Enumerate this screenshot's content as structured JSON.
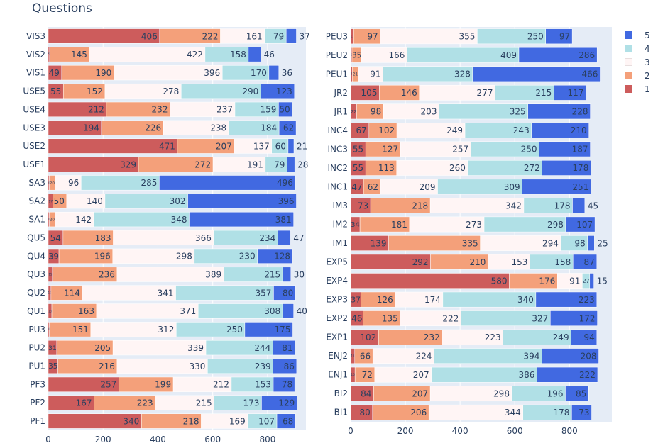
{
  "title": "Questions",
  "colors": {
    "1": "#cd5c5c",
    "2": "#f4a07a",
    "3": "#fff5f5",
    "4": "#b0e0e6",
    "5": "#4169e1",
    "plot_bg": "#e5ecf6"
  },
  "chart_data": [
    {
      "type": "bar",
      "orientation": "horizontal",
      "stacked": true,
      "xlim": [
        0,
        940
      ],
      "x_ticks": [
        0,
        200,
        400,
        600,
        800
      ],
      "categories": [
        "VIS3",
        "VIS2",
        "VIS1",
        "USE5",
        "USE4",
        "USE3",
        "USE2",
        "USE1",
        "SA3",
        "SA2",
        "SA1",
        "QU5",
        "QU4",
        "QU3",
        "QU2",
        "QU1",
        "PU3",
        "PU2",
        "PU1",
        "PF3",
        "PF2",
        "PF1"
      ],
      "series": [
        {
          "name": "1",
          "values": [
            406,
            5,
            49,
            55,
            212,
            194,
            471,
            329,
            4,
            17,
            4,
            54,
            39,
            15,
            10,
            13,
            4,
            31,
            35,
            257,
            167,
            340
          ]
        },
        {
          "name": "2",
          "values": [
            222,
            145,
            190,
            152,
            232,
            226,
            207,
            272,
            20,
            50,
            20,
            183,
            196,
            236,
            114,
            163,
            151,
            205,
            216,
            199,
            223,
            218
          ]
        },
        {
          "name": "3",
          "values": [
            161,
            422,
            396,
            278,
            237,
            238,
            137,
            191,
            96,
            140,
            142,
            366,
            298,
            389,
            341,
            371,
            312,
            339,
            330,
            212,
            215,
            169
          ]
        },
        {
          "name": "4",
          "values": [
            79,
            158,
            170,
            290,
            159,
            184,
            60,
            79,
            285,
            302,
            348,
            234,
            230,
            215,
            357,
            308,
            250,
            244,
            239,
            153,
            173,
            107
          ]
        },
        {
          "name": "5",
          "values": [
            37,
            46,
            36,
            123,
            50,
            62,
            21,
            28,
            496,
            396,
            381,
            47,
            128,
            30,
            80,
            40,
            175,
            81,
            86,
            78,
            129,
            68
          ]
        }
      ]
    },
    {
      "type": "bar",
      "orientation": "horizontal",
      "stacked": true,
      "xlim": [
        0,
        955
      ],
      "x_ticks": [
        0,
        200,
        400,
        600,
        800
      ],
      "categories": [
        "PEU3",
        "PEU2",
        "PEU1",
        "JR2",
        "JR1",
        "INC4",
        "INC3",
        "INC2",
        "INC1",
        "IM3",
        "IM2",
        "IM1",
        "EXP5",
        "EXP4",
        "EXP3",
        "EXP2",
        "EXP1",
        "ENJ2",
        "ENJ1",
        "BI2",
        "BI1"
      ],
      "series": [
        {
          "name": "1",
          "values": [
            11,
            5,
            6,
            105,
            22,
            67,
            55,
            55,
            47,
            73,
            34,
            139,
            292,
            580,
            37,
            46,
            102,
            15,
            16,
            84,
            80
          ]
        },
        {
          "name": "2",
          "values": [
            97,
            35,
            21,
            146,
            98,
            102,
            127,
            113,
            62,
            218,
            181,
            335,
            210,
            176,
            126,
            135,
            232,
            66,
            72,
            207,
            206
          ]
        },
        {
          "name": "3",
          "values": [
            355,
            166,
            91,
            277,
            203,
            249,
            257,
            260,
            209,
            342,
            273,
            294,
            153,
            91,
            174,
            222,
            223,
            224,
            207,
            298,
            344
          ]
        },
        {
          "name": "4",
          "values": [
            250,
            409,
            328,
            215,
            325,
            243,
            250,
            272,
            309,
            178,
            298,
            98,
            158,
            27,
            340,
            327,
            249,
            394,
            386,
            196,
            178
          ]
        },
        {
          "name": "5",
          "values": [
            97,
            286,
            466,
            117,
            228,
            210,
            187,
            178,
            251,
            45,
            107,
            25,
            87,
            15,
            223,
            172,
            94,
            208,
            222,
            85,
            73
          ]
        }
      ]
    }
  ],
  "legend": [
    {
      "key": "5",
      "label": "5"
    },
    {
      "key": "4",
      "label": "4"
    },
    {
      "key": "3",
      "label": "3"
    },
    {
      "key": "2",
      "label": "2"
    },
    {
      "key": "1",
      "label": "1"
    }
  ]
}
